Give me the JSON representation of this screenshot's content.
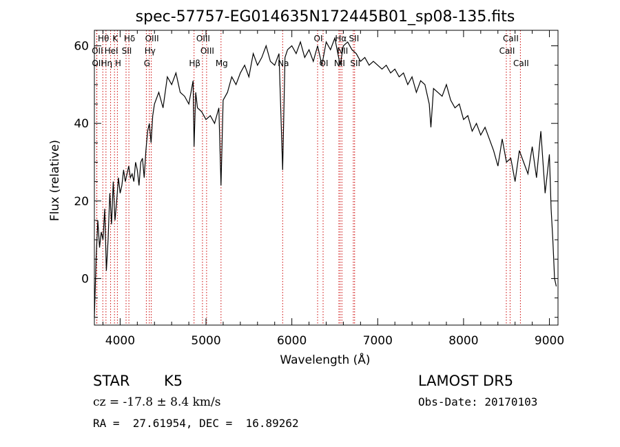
{
  "chart_data": {
    "type": "line",
    "title": "spec-57757-EG014635N172445B01_sp08-135.fits",
    "xlabel": "Wavelength (Å)",
    "ylabel": "Flux (relative)",
    "xlim": [
      3700,
      9100
    ],
    "ylim": [
      -12,
      64
    ],
    "xticks": [
      4000,
      5000,
      6000,
      7000,
      8000,
      9000
    ],
    "yticks": [
      0,
      20,
      40,
      60
    ],
    "grid": false,
    "series": [
      {
        "x": [
          3700,
          3720,
          3740,
          3760,
          3780,
          3800,
          3820,
          3840,
          3860,
          3880,
          3900,
          3920,
          3940,
          3960,
          3980,
          4000,
          4020,
          4040,
          4060,
          4080,
          4100,
          4120,
          4140,
          4160,
          4180,
          4200,
          4220,
          4240,
          4260,
          4280,
          4300,
          4320,
          4340,
          4360,
          4380,
          4400,
          4450,
          4500,
          4550,
          4600,
          4650,
          4700,
          4750,
          4800,
          4850,
          4861,
          4880,
          4900,
          4950,
          5000,
          5050,
          5100,
          5150,
          5175,
          5200,
          5250,
          5300,
          5350,
          5400,
          5450,
          5500,
          5550,
          5600,
          5650,
          5700,
          5750,
          5800,
          5850,
          5893,
          5920,
          5950,
          6000,
          6050,
          6100,
          6150,
          6200,
          6250,
          6300,
          6350,
          6400,
          6450,
          6500,
          6563,
          6600,
          6650,
          6700,
          6750,
          6800,
          6850,
          6900,
          6950,
          7000,
          7050,
          7100,
          7150,
          7200,
          7250,
          7300,
          7350,
          7400,
          7450,
          7500,
          7550,
          7600,
          7620,
          7650,
          7700,
          7750,
          7800,
          7850,
          7900,
          7950,
          8000,
          8050,
          8100,
          8150,
          8200,
          8250,
          8300,
          8350,
          8400,
          8450,
          8500,
          8550,
          8600,
          8650,
          8700,
          8750,
          8800,
          8850,
          8900,
          8950,
          9000,
          9020,
          9040,
          9060,
          9080
        ],
        "values": [
          -10,
          5,
          15,
          8,
          12,
          10,
          18,
          2,
          10,
          22,
          14,
          25,
          15,
          20,
          26,
          22,
          24,
          28,
          25,
          27,
          29,
          26,
          27,
          25,
          30,
          28,
          24,
          30,
          31,
          26,
          33,
          38,
          40,
          35,
          42,
          45,
          48,
          44,
          52,
          50,
          53,
          48,
          47,
          45,
          51,
          34,
          48,
          44,
          43,
          41,
          42,
          40,
          44,
          24,
          46,
          48,
          52,
          50,
          53,
          55,
          52,
          58,
          55,
          57,
          60,
          56,
          55,
          58,
          28,
          57,
          59,
          60,
          58,
          61,
          57,
          59,
          56,
          60,
          55,
          61,
          59,
          62,
          55,
          60,
          61,
          59,
          58,
          56,
          57,
          55,
          56,
          55,
          54,
          55,
          53,
          54,
          52,
          53,
          50,
          52,
          48,
          51,
          50,
          45,
          39,
          49,
          48,
          47,
          50,
          46,
          44,
          45,
          41,
          42,
          38,
          40,
          37,
          39,
          36,
          33,
          29,
          36,
          30,
          31,
          25,
          33,
          30,
          27,
          34,
          26,
          38,
          22,
          32,
          18,
          10,
          0,
          -2
        ]
      }
    ],
    "annotations": [
      {
        "label": "Hθ",
        "x": 3798,
        "row": 0
      },
      {
        "label": "K",
        "x": 3934,
        "row": 0
      },
      {
        "label": "Hδ",
        "x": 4102,
        "row": 0
      },
      {
        "label": "OIII",
        "x": 4363,
        "row": 0
      },
      {
        "label": "OIII",
        "x": 4959,
        "row": 0
      },
      {
        "label": "OI",
        "x": 6300,
        "row": 0
      },
      {
        "label": "Hα",
        "x": 6563,
        "row": 0
      },
      {
        "label": "SII",
        "x": 6716,
        "row": 0
      },
      {
        "label": "CaII",
        "x": 8542,
        "row": 0
      },
      {
        "label": "OII",
        "x": 3727,
        "row": 1
      },
      {
        "label": "HeI",
        "x": 3889,
        "row": 1
      },
      {
        "label": "SII",
        "x": 4069,
        "row": 1
      },
      {
        "label": "Hγ",
        "x": 4340,
        "row": 1
      },
      {
        "label": "OIII",
        "x": 5007,
        "row": 1
      },
      {
        "label": "NII",
        "x": 6583,
        "row": 1
      },
      {
        "label": "CaII",
        "x": 8498,
        "row": 1
      },
      {
        "label": "OII",
        "x": 3729,
        "row": 2
      },
      {
        "label": "Hη",
        "x": 3835,
        "row": 2
      },
      {
        "label": "H",
        "x": 3968,
        "row": 2
      },
      {
        "label": "G",
        "x": 4305,
        "row": 2
      },
      {
        "label": "Hβ",
        "x": 4861,
        "row": 2
      },
      {
        "label": "Mg",
        "x": 5175,
        "row": 2
      },
      {
        "label": "Na",
        "x": 5893,
        "row": 2
      },
      {
        "label": "OI",
        "x": 6364,
        "row": 2
      },
      {
        "label": "NII",
        "x": 6548,
        "row": 2
      },
      {
        "label": "SII",
        "x": 6731,
        "row": 2
      },
      {
        "label": "CaII",
        "x": 8662,
        "row": 2
      }
    ],
    "line_markers": [
      3727,
      3729,
      3798,
      3835,
      3889,
      3934,
      3968,
      4069,
      4102,
      4305,
      4340,
      4363,
      4861,
      4959,
      5007,
      5175,
      5893,
      6300,
      6364,
      6548,
      6563,
      6583,
      6716,
      6731,
      8498,
      8542,
      8662
    ],
    "colors": {
      "spectrum": "#000000",
      "markers": "#cc0000",
      "axes": "#000000"
    }
  },
  "info": {
    "object_class": "STAR",
    "subclass": "K5",
    "survey": "LAMOST DR5",
    "cz_line": "cz = -17.8 ± 8.4 km/s",
    "obs_date_line": "Obs-Date: 20170103",
    "radec_line": "RA =  27.61954, DEC =  16.89262"
  }
}
